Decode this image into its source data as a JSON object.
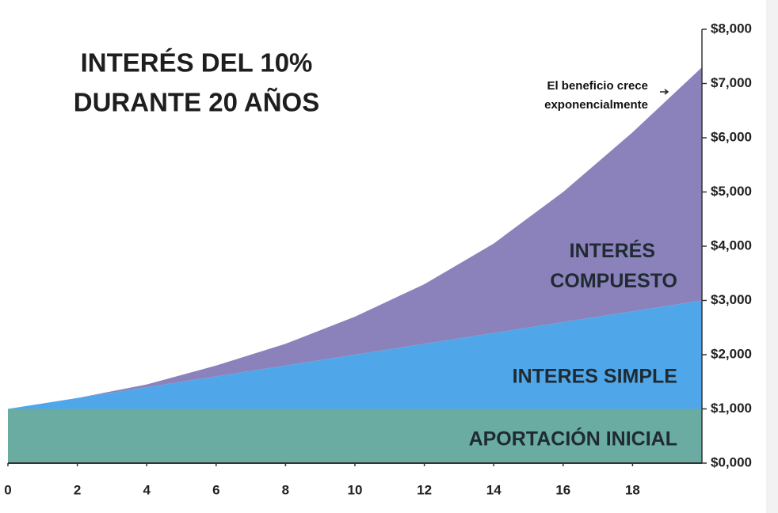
{
  "chart_data": {
    "type": "stacked_area",
    "title": [
      "INTERÉS DEL 10%",
      "DURANTE 20 AÑOS"
    ],
    "annotation": [
      "El beneficio crece",
      "exponencialmente"
    ],
    "x": [
      0,
      2,
      4,
      6,
      8,
      10,
      12,
      14,
      16,
      18,
      20
    ],
    "series": [
      {
        "name": "APORTACIÓN INICIAL",
        "color": "#6aaca1",
        "values": [
          1000,
          1000,
          1000,
          1000,
          1000,
          1000,
          1000,
          1000,
          1000,
          1000,
          1000
        ]
      },
      {
        "name": "INTERES SIMPLE",
        "color": "#4fa7e9",
        "values": [
          0,
          200,
          400,
          600,
          800,
          1000,
          1200,
          1400,
          1600,
          1800,
          2000
        ]
      },
      {
        "name": "INTERÉS COMPUESTO",
        "color": "#8c82bb",
        "values": [
          0,
          0,
          50,
          200,
          400,
          700,
          1100,
          1650,
          2400,
          3300,
          4300
        ]
      }
    ],
    "xlim": [
      0,
      20
    ],
    "xticks": [
      0,
      2,
      4,
      6,
      8,
      10,
      12,
      14,
      16,
      18
    ],
    "ylim": [
      0,
      8000
    ],
    "yticks": [
      {
        "value": 0,
        "label": "$0,000"
      },
      {
        "value": 1000,
        "label": "$1,000"
      },
      {
        "value": 2000,
        "label": "$2,000"
      },
      {
        "value": 3000,
        "label": "$3,000"
      },
      {
        "value": 4000,
        "label": "$4,000"
      },
      {
        "value": 5000,
        "label": "$5,000"
      },
      {
        "value": 6000,
        "label": "$6,000"
      },
      {
        "value": 7000,
        "label": "$7,000"
      },
      {
        "value": 8000,
        "label": "$8,000"
      }
    ],
    "yaxis_side": "right"
  }
}
